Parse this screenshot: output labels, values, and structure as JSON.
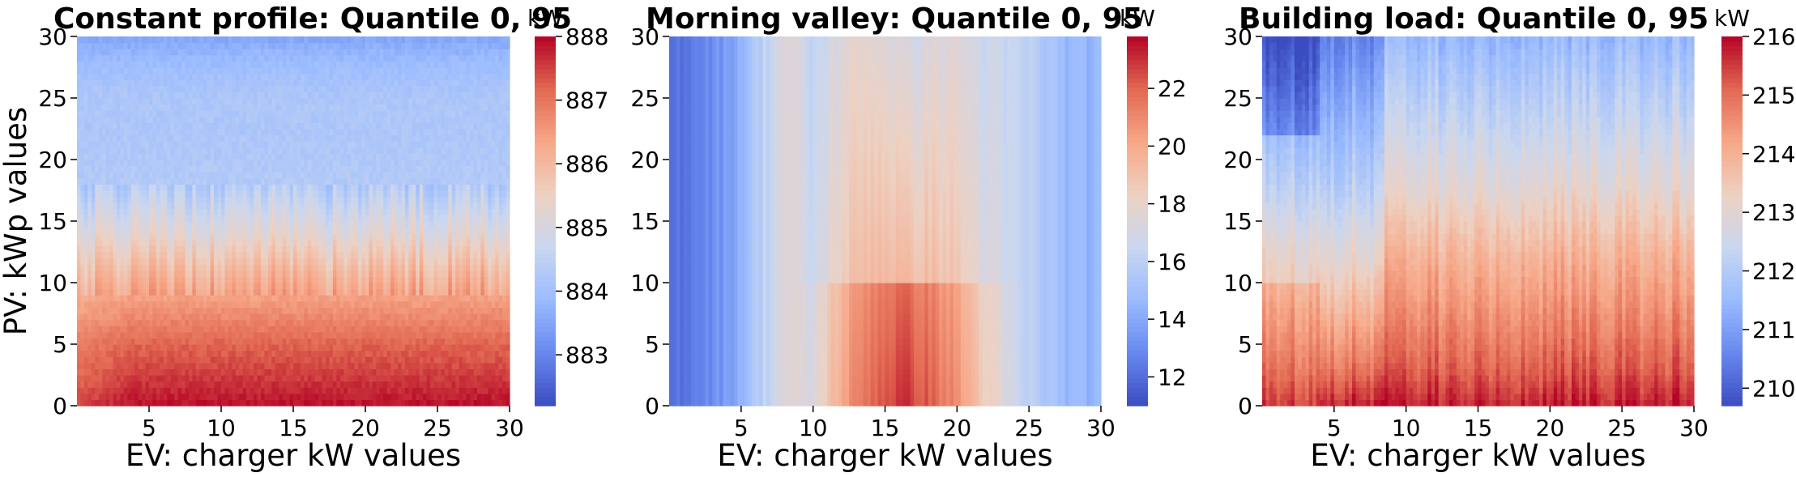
{
  "colormap": {
    "name": "coolwarm",
    "stops": [
      "#3b4cc0",
      "#6788ee",
      "#9abbff",
      "#c9d7f0",
      "#edd1c2",
      "#f7a889",
      "#e26952",
      "#b40426"
    ]
  },
  "chart_data": [
    {
      "type": "heatmap",
      "title": "Constant profile: Quantile 0, 95",
      "xlabel": "EV: charger kW values",
      "ylabel": "PV: kWp values",
      "xlim": [
        0,
        30
      ],
      "ylim": [
        0,
        30
      ],
      "xticks": [
        "5",
        "10",
        "15",
        "20",
        "25",
        "30"
      ],
      "yticks": [
        "0",
        "5",
        "10",
        "15",
        "20",
        "25",
        "30"
      ],
      "colorbar": {
        "label": "kW",
        "range": [
          882.2,
          888.0
        ],
        "ticks": [
          "883",
          "884",
          "885",
          "886",
          "887",
          "888"
        ]
      },
      "value_profile": {
        "pv_kWp": [
          0,
          2,
          5,
          8,
          11,
          14,
          18,
          22,
          25,
          28,
          30
        ],
        "value_kW": [
          887.9,
          887.6,
          887.2,
          886.6,
          886.0,
          885.2,
          884.3,
          884.2,
          884.2,
          883.9,
          883.5
        ]
      }
    },
    {
      "type": "heatmap",
      "title": "Morning valley: Quantile 0, 95",
      "xlabel": "EV: charger kW values",
      "ylabel": "",
      "xlim": [
        0,
        30
      ],
      "ylim": [
        0,
        30
      ],
      "xticks": [
        "5",
        "10",
        "15",
        "20",
        "25",
        "30"
      ],
      "yticks": [
        "0",
        "5",
        "10",
        "15",
        "20",
        "25",
        "30"
      ],
      "colorbar": {
        "label": "kW",
        "range": [
          11.0,
          23.8
        ],
        "ticks": [
          "12",
          "14",
          "16",
          "18",
          "20",
          "22"
        ]
      },
      "value_profile": {
        "ev_kW": [
          0,
          4,
          8,
          10,
          12,
          14,
          16,
          18,
          20,
          22,
          24,
          26,
          28,
          30
        ],
        "value_kW": [
          12.0,
          13.5,
          17.5,
          17.0,
          19.5,
          21.0,
          21.5,
          21.0,
          20.0,
          18.0,
          16.5,
          15.5,
          14.5,
          14.5
        ]
      }
    },
    {
      "type": "heatmap",
      "title": "Building load: Quantile 0, 95",
      "xlabel": "EV: charger kW values",
      "ylabel": "",
      "xlim": [
        0,
        30
      ],
      "ylim": [
        0,
        30
      ],
      "xticks": [
        "5",
        "10",
        "15",
        "20",
        "25",
        "30"
      ],
      "yticks": [
        "0",
        "5",
        "10",
        "15",
        "20",
        "25",
        "30"
      ],
      "colorbar": {
        "label": "kW",
        "range": [
          209.7,
          216.0
        ],
        "ticks": [
          "210",
          "211",
          "212",
          "213",
          "214",
          "215",
          "216"
        ]
      },
      "value_profile": {
        "pv_kWp": [
          0,
          3,
          6,
          9,
          12,
          15,
          18,
          22,
          26,
          30
        ],
        "value_kW": [
          215.8,
          215.2,
          214.8,
          214.4,
          214.0,
          213.5,
          213.0,
          212.5,
          212.0,
          211.5
        ]
      }
    }
  ]
}
